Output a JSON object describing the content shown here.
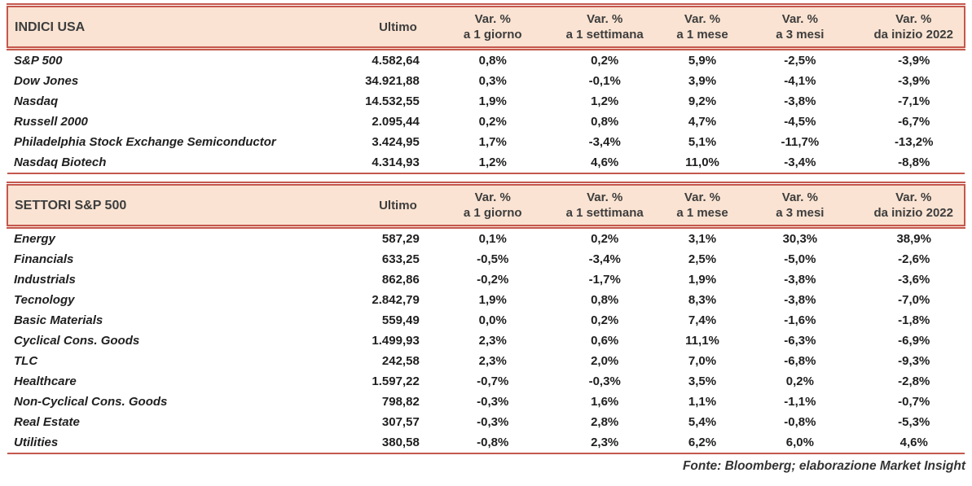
{
  "colors": {
    "header_background": "#FAE3D2",
    "border_line": "#C4584E",
    "header_text": "#3D3D3D",
    "body_text": "#1F1F1F"
  },
  "tables": [
    {
      "title": "INDICI USA",
      "ultimo_label": "Ultimo",
      "var_label": "Var. %",
      "periods": [
        "a 1 giorno",
        "a 1 settimana",
        "a 1 mese",
        "a 3 mesi",
        "da inizio 2022"
      ],
      "rows": [
        [
          "S&P 500",
          "4.582,64",
          "0,8%",
          "0,2%",
          "5,9%",
          "-2,5%",
          "-3,9%"
        ],
        [
          "Dow Jones",
          "34.921,88",
          "0,3%",
          "-0,1%",
          "3,9%",
          "-4,1%",
          "-3,9%"
        ],
        [
          "Nasdaq",
          "14.532,55",
          "1,9%",
          "1,2%",
          "9,2%",
          "-3,8%",
          "-7,1%"
        ],
        [
          "Russell 2000",
          "2.095,44",
          "0,2%",
          "0,8%",
          "4,7%",
          "-4,5%",
          "-6,7%"
        ],
        [
          "Philadelphia Stock Exchange Semiconductor",
          "3.424,95",
          "1,7%",
          "-3,4%",
          "5,1%",
          "-11,7%",
          "-13,2%"
        ],
        [
          "Nasdaq Biotech",
          "4.314,93",
          "1,2%",
          "4,6%",
          "11,0%",
          "-3,4%",
          "-8,8%"
        ]
      ]
    },
    {
      "title": "SETTORI S&P 500",
      "ultimo_label": "Ultimo",
      "var_label": "Var. %",
      "periods": [
        "a 1 giorno",
        "a 1 settimana",
        "a 1 mese",
        "a 3 mesi",
        "da inizio 2022"
      ],
      "rows": [
        [
          "Energy",
          "587,29",
          "0,1%",
          "0,2%",
          "3,1%",
          "30,3%",
          "38,9%"
        ],
        [
          "Financials",
          "633,25",
          "-0,5%",
          "-3,4%",
          "2,5%",
          "-5,0%",
          "-2,6%"
        ],
        [
          "Industrials",
          "862,86",
          "-0,2%",
          "-1,7%",
          "1,9%",
          "-3,8%",
          "-3,6%"
        ],
        [
          "Tecnology",
          "2.842,79",
          "1,9%",
          "0,8%",
          "8,3%",
          "-3,8%",
          "-7,0%"
        ],
        [
          "Basic Materials",
          "559,49",
          "0,0%",
          "0,2%",
          "7,4%",
          "-1,6%",
          "-1,8%"
        ],
        [
          "Cyclical Cons. Goods",
          "1.499,93",
          "2,3%",
          "0,6%",
          "11,1%",
          "-6,3%",
          "-6,9%"
        ],
        [
          "TLC",
          "242,58",
          "2,3%",
          "2,0%",
          "7,0%",
          "-6,8%",
          "-9,3%"
        ],
        [
          "Healthcare",
          "1.597,22",
          "-0,7%",
          "-0,3%",
          "3,5%",
          "0,2%",
          "-2,8%"
        ],
        [
          "Non-Cyclical Cons. Goods",
          "798,82",
          "-0,3%",
          "1,6%",
          "1,1%",
          "-1,1%",
          "-0,7%"
        ],
        [
          "Real Estate",
          "307,57",
          "-0,3%",
          "2,8%",
          "5,4%",
          "-0,8%",
          "-5,3%"
        ],
        [
          "Utilities",
          "380,58",
          "-0,8%",
          "2,3%",
          "6,2%",
          "6,0%",
          "4,6%"
        ]
      ]
    }
  ],
  "footer": "Fonte: Bloomberg; elaborazione Market Insight"
}
